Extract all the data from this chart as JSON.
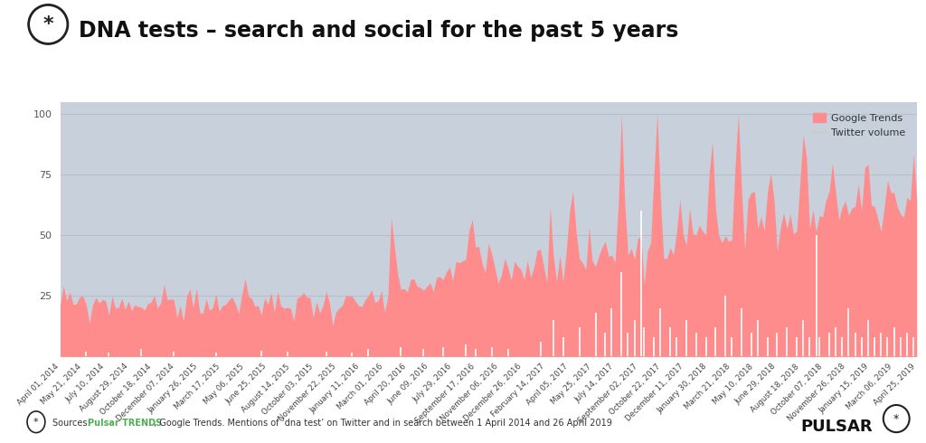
{
  "title": "DNA tests – search and social for the past 5 years",
  "background_color": "#ffffff",
  "chart_bg_color": "#c8d0db",
  "google_trends_color": "#ff8c8c",
  "twitter_color": "#ffffff",
  "ylim": [
    0,
    105
  ],
  "yticks": [
    0,
    25,
    50,
    75,
    100
  ],
  "legend_google": "Google Trends",
  "legend_twitter": "Twitter volume",
  "pulsar_text": "PULSAR",
  "xtick_labels": [
    "April 01, 2014",
    "May 21, 2014",
    "July 10, 2014",
    "August 29, 2014",
    "October 18, 2014",
    "December 07, 2014",
    "January 26, 2015",
    "March 17, 2015",
    "May 06, 2015",
    "June 25, 2015",
    "August 14, 2015",
    "October 03, 2015",
    "November 22, 2015",
    "January 11, 2016",
    "March 01, 2016",
    "April 20, 2016",
    "June 09, 2016",
    "July 29, 2016",
    "September 17, 2016",
    "November 06, 2016",
    "December 26, 2016",
    "February 14, 2017",
    "April 05, 2017",
    "May 25, 2017",
    "July 14, 2017",
    "September 02, 2017",
    "October 22, 2017",
    "December 11, 2017",
    "January 30, 2018",
    "March 21, 2018",
    "May 10, 2018",
    "June 29, 2018",
    "August 18, 2018",
    "October 07, 2018",
    "November 26, 2018",
    "January 15, 2019",
    "March 06, 2019",
    "April 25, 2019"
  ]
}
